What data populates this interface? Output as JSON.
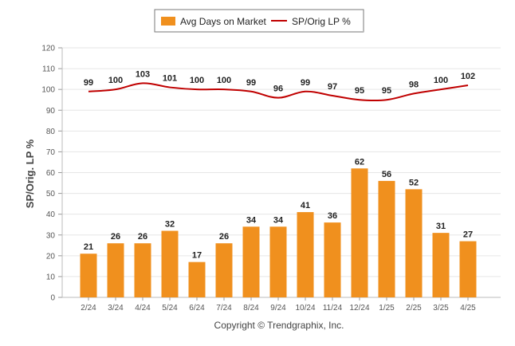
{
  "chart_data": {
    "type": "bar",
    "categories": [
      "2/24",
      "3/24",
      "4/24",
      "5/24",
      "6/24",
      "7/24",
      "8/24",
      "9/24",
      "10/24",
      "11/24",
      "12/24",
      "1/25",
      "2/25",
      "3/25",
      "4/25"
    ],
    "series": [
      {
        "name": "Avg Days on Market",
        "type": "bar",
        "color": "#F0901E",
        "values": [
          21,
          26,
          26,
          32,
          17,
          26,
          34,
          34,
          41,
          36,
          62,
          56,
          52,
          31,
          27
        ]
      },
      {
        "name": "SP/Orig LP %",
        "type": "line",
        "color": "#C00000",
        "values": [
          99,
          100,
          103,
          101,
          100,
          100,
          99,
          96,
          99,
          97,
          95,
          95,
          98,
          100,
          102
        ]
      }
    ],
    "ylabel": "SP/Orig. LP %",
    "ylim": [
      0,
      120
    ],
    "yticks": [
      0,
      10,
      20,
      30,
      40,
      50,
      60,
      70,
      80,
      90,
      100,
      110,
      120
    ],
    "grid": true,
    "legend_position": "top-center"
  },
  "copyright": "Copyright © Trendgraphix, Inc."
}
